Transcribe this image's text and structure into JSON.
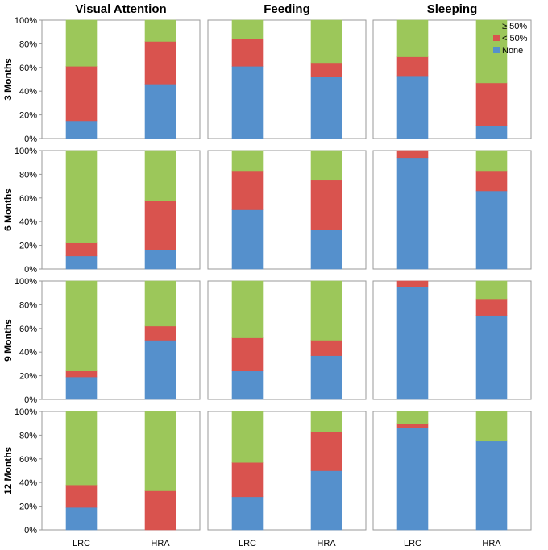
{
  "colors": {
    "none": "#5590CC",
    "lt50": "#D9534E",
    "gte50": "#9CC75A"
  },
  "chart_data": {
    "type": "bar",
    "stacked": true,
    "y_tick_labels": [
      "0%",
      "20%",
      "40%",
      "60%",
      "80%",
      "100%"
    ],
    "ylim": [
      0,
      100
    ],
    "categories": [
      "LRC",
      "HRA"
    ],
    "columns": [
      "Visual Attention",
      "Feeding",
      "Sleeping"
    ],
    "rows": [
      "3 Months",
      "6 Months",
      "9 Months",
      "12 Months"
    ],
    "legend": {
      "placement": "top-right",
      "entries": [
        {
          "key": "gte50",
          "label": "≥ 50%"
        },
        {
          "key": "lt50",
          "label": "< 50%"
        },
        {
          "key": "none",
          "label": "None"
        }
      ]
    },
    "panels": [
      {
        "row": "3 Months",
        "column": "Visual Attention",
        "series": [
          {
            "name": "None",
            "values": [
              15,
              46
            ]
          },
          {
            "name": "< 50%",
            "values": [
              46,
              36
            ]
          },
          {
            "name": "≥ 50%",
            "values": [
              39,
              18
            ]
          }
        ]
      },
      {
        "row": "3 Months",
        "column": "Feeding",
        "series": [
          {
            "name": "None",
            "values": [
              61,
              52
            ]
          },
          {
            "name": "< 50%",
            "values": [
              23,
              12
            ]
          },
          {
            "name": "≥ 50%",
            "values": [
              16,
              36
            ]
          }
        ]
      },
      {
        "row": "3 Months",
        "column": "Sleeping",
        "series": [
          {
            "name": "None",
            "values": [
              53,
              11
            ]
          },
          {
            "name": "< 50%",
            "values": [
              16,
              36
            ]
          },
          {
            "name": "≥ 50%",
            "values": [
              31,
              53
            ]
          }
        ]
      },
      {
        "row": "6 Months",
        "column": "Visual Attention",
        "series": [
          {
            "name": "None",
            "values": [
              11,
              16
            ]
          },
          {
            "name": "< 50%",
            "values": [
              11,
              42
            ]
          },
          {
            "name": "≥ 50%",
            "values": [
              78,
              42
            ]
          }
        ]
      },
      {
        "row": "6 Months",
        "column": "Feeding",
        "series": [
          {
            "name": "None",
            "values": [
              50,
              33
            ]
          },
          {
            "name": "< 50%",
            "values": [
              33,
              42
            ]
          },
          {
            "name": "≥ 50%",
            "values": [
              17,
              25
            ]
          }
        ]
      },
      {
        "row": "6 Months",
        "column": "Sleeping",
        "series": [
          {
            "name": "None",
            "values": [
              94,
              66
            ]
          },
          {
            "name": "< 50%",
            "values": [
              6,
              17
            ]
          },
          {
            "name": "≥ 50%",
            "values": [
              0,
              17
            ]
          }
        ]
      },
      {
        "row": "9 Months",
        "column": "Visual Attention",
        "series": [
          {
            "name": "None",
            "values": [
              19,
              50
            ]
          },
          {
            "name": "< 50%",
            "values": [
              5,
              12
            ]
          },
          {
            "name": "≥ 50%",
            "values": [
              76,
              38
            ]
          }
        ]
      },
      {
        "row": "9 Months",
        "column": "Feeding",
        "series": [
          {
            "name": "None",
            "values": [
              24,
              37
            ]
          },
          {
            "name": "< 50%",
            "values": [
              28,
              13
            ]
          },
          {
            "name": "≥ 50%",
            "values": [
              48,
              50
            ]
          }
        ]
      },
      {
        "row": "9 Months",
        "column": "Sleeping",
        "series": [
          {
            "name": "None",
            "values": [
              95,
              71
            ]
          },
          {
            "name": "< 50%",
            "values": [
              5,
              14
            ]
          },
          {
            "name": "≥ 50%",
            "values": [
              0,
              15
            ]
          }
        ]
      },
      {
        "row": "12 Months",
        "column": "Visual Attention",
        "series": [
          {
            "name": "None",
            "values": [
              19,
              0
            ]
          },
          {
            "name": "< 50%",
            "values": [
              19,
              33
            ]
          },
          {
            "name": "≥ 50%",
            "values": [
              62,
              67
            ]
          }
        ]
      },
      {
        "row": "12 Months",
        "column": "Feeding",
        "series": [
          {
            "name": "None",
            "values": [
              28,
              50
            ]
          },
          {
            "name": "< 50%",
            "values": [
              29,
              33
            ]
          },
          {
            "name": "≥ 50%",
            "values": [
              43,
              17
            ]
          }
        ]
      },
      {
        "row": "12 Months",
        "column": "Sleeping",
        "series": [
          {
            "name": "None",
            "values": [
              86,
              75
            ]
          },
          {
            "name": "< 50%",
            "values": [
              4,
              0
            ]
          },
          {
            "name": "≥ 50%",
            "values": [
              10,
              25
            ]
          }
        ]
      }
    ]
  }
}
